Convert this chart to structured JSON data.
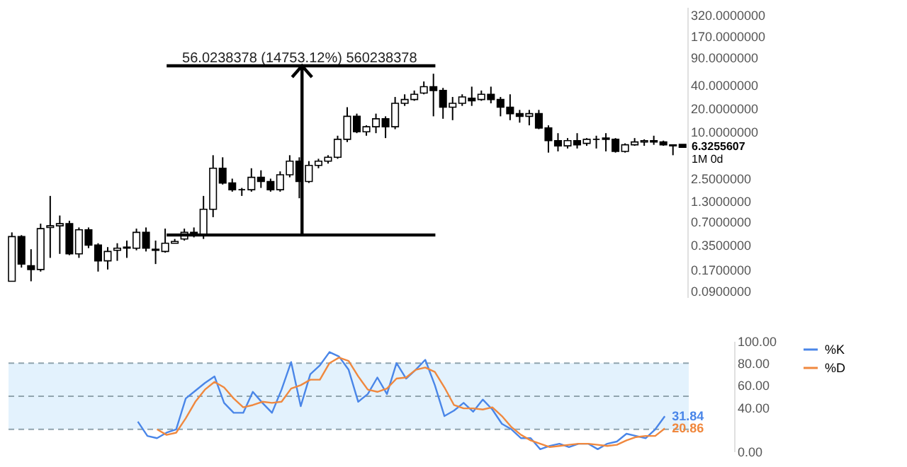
{
  "chart_data": [
    {
      "type": "candlestick",
      "log": "y",
      "tick_labels": "y",
      "categories": [
        null,
        null,
        null,
        null,
        null,
        null,
        null,
        null,
        null,
        null,
        null,
        null,
        null,
        null,
        null,
        null,
        null,
        null,
        null,
        null,
        null,
        null,
        null,
        null,
        null,
        null,
        null,
        null,
        null,
        null,
        null,
        null,
        null,
        null,
        null,
        null,
        null,
        null,
        null,
        null,
        null,
        null,
        null,
        null,
        null,
        null,
        null,
        null,
        null,
        null,
        null,
        null,
        null,
        null,
        null,
        null,
        null,
        null,
        null,
        null,
        null,
        null,
        null,
        null,
        null,
        null,
        null,
        null,
        null,
        null,
        null
      ],
      "ohlc": [
        [
          0.12,
          0.51,
          0.12,
          0.45
        ],
        [
          0.45,
          0.47,
          0.18,
          0.2
        ],
        [
          0.19,
          0.31,
          0.12,
          0.17
        ],
        [
          0.17,
          0.66,
          0.16,
          0.57
        ],
        [
          0.59,
          1.5,
          0.24,
          0.62
        ],
        [
          0.62,
          0.84,
          0.27,
          0.66
        ],
        [
          0.66,
          0.72,
          0.26,
          0.27
        ],
        [
          0.27,
          0.59,
          0.24,
          0.55
        ],
        [
          0.55,
          0.59,
          0.32,
          0.35
        ],
        [
          0.35,
          0.37,
          0.16,
          0.22
        ],
        [
          0.22,
          0.33,
          0.17,
          0.29
        ],
        [
          0.3,
          0.37,
          0.22,
          0.32
        ],
        [
          0.32,
          0.4,
          0.24,
          0.33
        ],
        [
          0.32,
          0.57,
          0.3,
          0.51
        ],
        [
          0.51,
          0.59,
          0.29,
          0.32
        ],
        [
          0.31,
          0.4,
          0.2,
          0.3
        ],
        [
          0.29,
          0.57,
          0.28,
          0.37
        ],
        [
          0.37,
          0.42,
          0.37,
          0.39
        ],
        [
          0.42,
          0.57,
          0.4,
          0.51
        ],
        [
          0.51,
          0.59,
          0.44,
          0.47
        ],
        [
          0.47,
          1.5,
          0.42,
          1.01
        ],
        [
          1.01,
          5.0,
          0.8,
          3.4
        ],
        [
          3.4,
          4.7,
          2.1,
          2.2
        ],
        [
          2.2,
          2.5,
          1.7,
          1.8
        ],
        [
          1.8,
          1.9,
          1.5,
          1.8
        ],
        [
          1.8,
          3.4,
          1.7,
          2.6
        ],
        [
          2.6,
          3.2,
          1.9,
          2.3
        ],
        [
          2.3,
          2.5,
          1.7,
          1.8
        ],
        [
          1.8,
          3.1,
          1.7,
          2.8
        ],
        [
          2.8,
          5.0,
          2.6,
          4.2
        ],
        [
          4.2,
          4.7,
          1.4,
          2.3
        ],
        [
          2.3,
          4.2,
          2.2,
          3.7
        ],
        [
          3.7,
          4.5,
          3.4,
          4.2
        ],
        [
          4.2,
          5.0,
          3.9,
          4.7
        ],
        [
          4.7,
          8.9,
          4.5,
          8.0
        ],
        [
          8.0,
          20.7,
          7.4,
          15.8
        ],
        [
          15.8,
          17.1,
          9.6,
          10.0
        ],
        [
          10.0,
          12.1,
          8.9,
          11.6
        ],
        [
          11.6,
          17.1,
          9.6,
          14.7
        ],
        [
          14.7,
          15.8,
          8.3,
          11.6
        ],
        [
          11.6,
          28.0,
          10.8,
          23.2
        ],
        [
          23.2,
          30.3,
          21.5,
          26.0
        ],
        [
          26.0,
          33.9,
          25.0,
          30.3
        ],
        [
          31.4,
          44.3,
          30.3,
          38.0
        ],
        [
          38.0,
          55.7,
          15.8,
          33.9
        ],
        [
          33.9,
          36.6,
          14.7,
          20.7
        ],
        [
          20.7,
          28.0,
          14.1,
          23.2
        ],
        [
          23.2,
          30.3,
          21.5,
          28.0
        ],
        [
          27.0,
          38.0,
          21.5,
          25.0
        ],
        [
          26.0,
          33.9,
          25.0,
          30.3
        ],
        [
          30.3,
          38.0,
          23.2,
          26.0
        ],
        [
          26.0,
          28.0,
          15.8,
          20.7
        ],
        [
          20.7,
          30.3,
          14.1,
          17.1
        ],
        [
          17.1,
          19.1,
          13.1,
          15.8
        ],
        [
          15.8,
          19.1,
          12.1,
          17.1
        ],
        [
          17.1,
          19.1,
          10.8,
          11.2
        ],
        [
          11.2,
          12.1,
          5.4,
          7.7
        ],
        [
          7.7,
          9.6,
          5.6,
          6.6
        ],
        [
          6.6,
          8.3,
          6.1,
          7.7
        ],
        [
          7.7,
          9.6,
          6.1,
          6.8
        ],
        [
          7.1,
          8.3,
          6.6,
          8.0
        ],
        [
          8.0,
          8.9,
          6.1,
          8.0
        ],
        [
          8.0,
          9.6,
          5.6,
          8.3
        ],
        [
          8.0,
          8.3,
          5.4,
          5.6
        ],
        [
          5.6,
          7.1,
          5.4,
          6.8
        ],
        [
          6.8,
          8.3,
          6.6,
          7.4
        ],
        [
          7.4,
          8.0,
          6.6,
          7.7
        ],
        [
          7.7,
          8.9,
          6.8,
          7.4
        ],
        [
          7.4,
          7.7,
          6.6,
          6.8
        ],
        [
          6.8,
          6.8,
          5.0,
          6.6
        ],
        [
          6.9,
          6.9,
          6.3255607,
          6.3255607
        ]
      ],
      "ylim": [
        0.075,
        400
      ],
      "yticks": [
        {
          "value": 0.09,
          "label": "0.0900000"
        },
        {
          "value": 0.17,
          "label": "0.1700000"
        },
        {
          "value": 0.35,
          "label": "0.3500000"
        },
        {
          "value": 0.7,
          "label": "0.7000000"
        },
        {
          "value": 1.3,
          "label": "1.3000000"
        },
        {
          "value": 2.5,
          "label": "2.5000000"
        },
        {
          "value": 10,
          "label": "10.0000000"
        },
        {
          "value": 20,
          "label": "20.0000000"
        },
        {
          "value": 40,
          "label": "40.0000000"
        },
        {
          "value": 90,
          "label": "90.0000000"
        },
        {
          "value": 170,
          "label": "170.0000000"
        },
        {
          "value": 320,
          "label": "320.0000000"
        }
      ],
      "annotations": [
        "56.0238378 (14753.12%) 560238378",
        "6.3255607",
        "1M 0d"
      ]
    },
    {
      "type": "line",
      "tick_labels": "y",
      "legend": "right",
      "categories": [
        null,
        null,
        null,
        null,
        null,
        null,
        null,
        null,
        null,
        null,
        null,
        null,
        null,
        null,
        null,
        null,
        null,
        null,
        null,
        null,
        null,
        null,
        null,
        null,
        null,
        null,
        null,
        null,
        null,
        null,
        null,
        null,
        null,
        null,
        null,
        null,
        null,
        null,
        null,
        null,
        null,
        null,
        null,
        null,
        null,
        null,
        null,
        null,
        null,
        null,
        null,
        null,
        null,
        null,
        null,
        null,
        null,
        null,
        null,
        null,
        null,
        null,
        null,
        null,
        null,
        null,
        null,
        null,
        null,
        null,
        null
      ],
      "series": [
        {
          "name": "%K",
          "color": "#4a86e8",
          "values": [
            null,
            null,
            null,
            null,
            null,
            null,
            null,
            null,
            null,
            null,
            null,
            null,
            null,
            27,
            14,
            12,
            17,
            20,
            48,
            55,
            62,
            68,
            44,
            35,
            35,
            54,
            44,
            35,
            56,
            81,
            41,
            70,
            78,
            90,
            86,
            74,
            45,
            52,
            67,
            52,
            80,
            66,
            74,
            83,
            60,
            32,
            37,
            44,
            36,
            47,
            38,
            25,
            20,
            12,
            12,
            2,
            5,
            7,
            4,
            7,
            7,
            2,
            7,
            9,
            16,
            14,
            12,
            20,
            31.84,
            null,
            null
          ],
          "value_labels": [
            null,
            null,
            null,
            null,
            null,
            null,
            null,
            null,
            null,
            null,
            null,
            null,
            null,
            null,
            null,
            null,
            null,
            null,
            null,
            null,
            null,
            null,
            null,
            null,
            null,
            null,
            null,
            null,
            null,
            null,
            null,
            null,
            null,
            null,
            null,
            null,
            null,
            null,
            null,
            null,
            null,
            null,
            null,
            null,
            null,
            null,
            null,
            null,
            null,
            null,
            null,
            null,
            null,
            null,
            null,
            null,
            null,
            null,
            null,
            null,
            null,
            null,
            null,
            null,
            null,
            null,
            null,
            null,
            "31.84",
            null,
            null
          ]
        },
        {
          "name": "%D",
          "color": "#f0883e",
          "values": [
            null,
            null,
            null,
            null,
            null,
            null,
            null,
            null,
            null,
            null,
            null,
            null,
            null,
            null,
            null,
            20,
            15,
            17,
            30,
            45,
            56,
            63,
            58,
            48,
            40,
            42,
            45,
            44,
            45,
            57,
            60,
            65,
            65,
            80,
            85,
            82,
            68,
            56,
            54,
            57,
            66,
            67,
            74,
            76,
            72,
            58,
            42,
            39,
            39,
            38,
            40,
            32,
            22,
            15,
            10,
            7,
            4,
            5,
            6,
            7,
            7,
            6,
            5,
            6,
            10,
            13,
            14,
            14,
            20.86,
            null,
            null
          ],
          "value_labels": [
            null,
            null,
            null,
            null,
            null,
            null,
            null,
            null,
            null,
            null,
            null,
            null,
            null,
            null,
            null,
            null,
            null,
            null,
            null,
            null,
            null,
            null,
            null,
            null,
            null,
            null,
            null,
            null,
            null,
            null,
            null,
            null,
            null,
            null,
            null,
            null,
            null,
            null,
            null,
            null,
            null,
            null,
            null,
            null,
            null,
            null,
            null,
            null,
            null,
            null,
            null,
            null,
            null,
            null,
            null,
            null,
            null,
            null,
            null,
            null,
            null,
            null,
            null,
            null,
            null,
            null,
            null,
            null,
            "20.86",
            null,
            null
          ]
        }
      ],
      "ylim": [
        0,
        100
      ],
      "yticks": [
        {
          "value": 0,
          "label": "0.00"
        },
        {
          "value": 20,
          "label": null
        },
        {
          "value": 40,
          "label": "40.00"
        },
        {
          "value": 60,
          "label": "60.00"
        },
        {
          "value": 80,
          "label": "80.00"
        },
        {
          "value": 100,
          "label": "100.00"
        }
      ],
      "bands": [
        {
          "axis": "y",
          "from": 20,
          "to": 80,
          "color": "#e3f2fd"
        }
      ],
      "ref_lines": [
        {
          "axis": "y",
          "value": 80,
          "color": "#90a4ae",
          "line_style": "dashed"
        },
        {
          "axis": "y",
          "value": 50,
          "color": "#90a4ae",
          "line_style": "dashed"
        },
        {
          "axis": "y",
          "value": 20,
          "color": "#90a4ae",
          "line_style": "dashed"
        }
      ]
    }
  ]
}
